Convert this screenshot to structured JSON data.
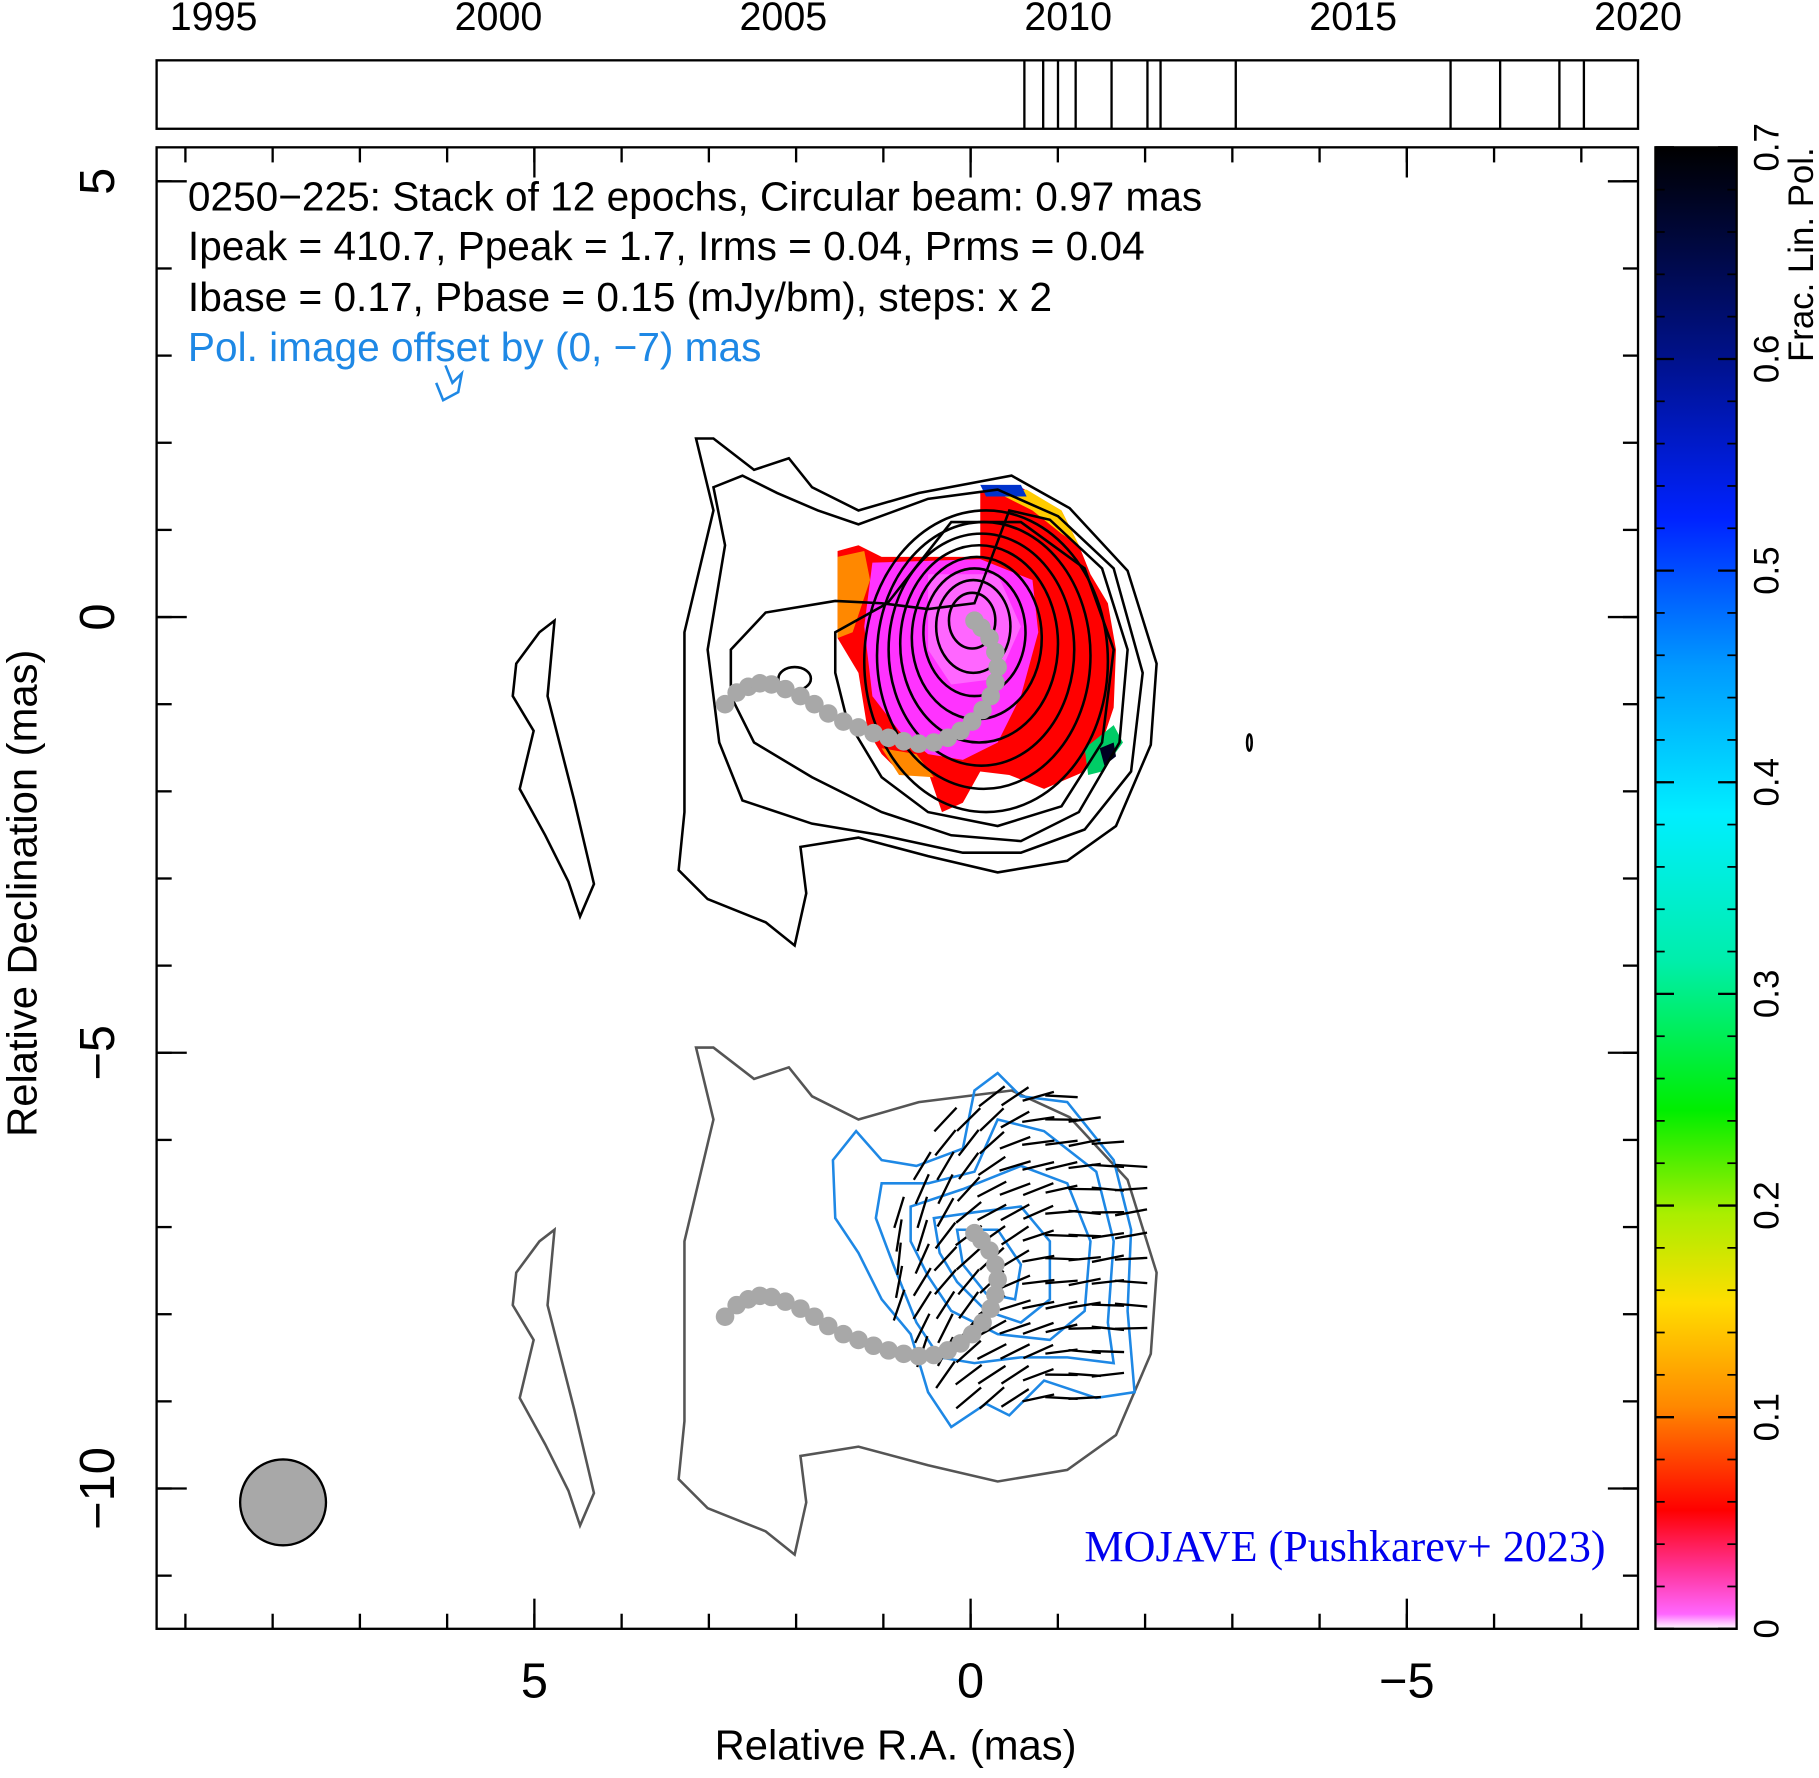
{
  "chart_data": {
    "type": "polarization-map",
    "title_lines": [
      "0250−225: Stack of 12 epochs, Circular beam: 0.97 mas",
      "Ipeak = 410.7, Ppeak = 1.7, Irms = 0.04, Prms = 0.04",
      "Ibase = 0.17, Pbase = 0.15 (mJy/bm), steps: x 2",
      "Pol. image offset by (0, −7) mas"
    ],
    "annotation": "MOJAVE (Pushkarev+ 2023)",
    "xlabel": "Relative R.A. (mas)",
    "ylabel": "Relative Declination (mas)",
    "xlim": [
      9.33,
      -7.65
    ],
    "xticks": [
      5,
      0,
      {
        "value": -5,
        "label": "−5"
      }
    ],
    "ylim": [
      -11.61,
      5.39
    ],
    "yticks": [
      {
        "value": -10,
        "label": "−10"
      },
      {
        "value": -5,
        "label": "−5"
      },
      0,
      5
    ],
    "colorbar": {
      "label": "Frac. Lin. Pol.",
      "lim": [
        0,
        0.7
      ],
      "ticks": [
        0,
        0.1,
        0.2,
        0.3,
        0.4,
        0.5,
        0.6,
        0.7
      ]
    },
    "timeline": {
      "xlim": [
        1994,
        2020
      ],
      "xticks": [
        1995,
        2000,
        2005,
        2010,
        2015,
        2020
      ],
      "epochs": [
        2009.23,
        2009.56,
        2009.82,
        2010.13,
        2010.76,
        2011.39,
        2011.62,
        2012.94,
        2016.71,
        2017.58,
        2018.62,
        2019.05
      ]
    }
  }
}
